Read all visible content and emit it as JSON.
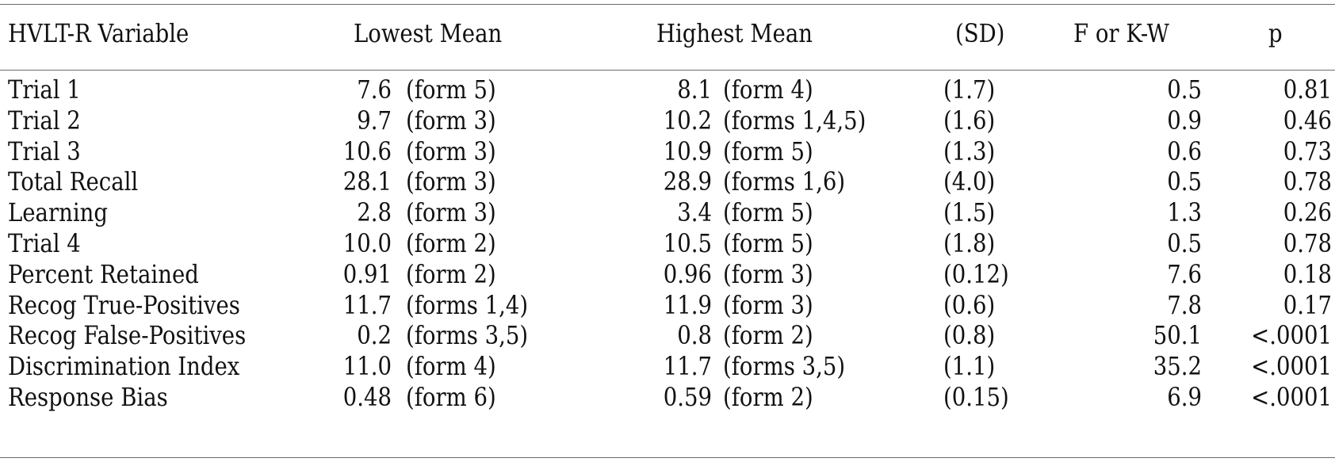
{
  "table": {
    "headers": {
      "variable": "HVLT-R Variable",
      "lowest": "Lowest Mean",
      "highest": "Highest Mean",
      "sd": "(SD)",
      "f": "F or K-W",
      "p": "p"
    },
    "rows": [
      {
        "variable": "Trial 1",
        "low_val": "7.6",
        "low_form": "(form 5)",
        "high_val": "8.1",
        "high_form": "(form 4)",
        "sd": "(1.7)",
        "f": "0.5",
        "p": "0.81"
      },
      {
        "variable": "Trial 2",
        "low_val": "9.7",
        "low_form": "(form 3)",
        "high_val": "10.2",
        "high_form": "(forms 1,4,5)",
        "sd": "(1.6)",
        "f": "0.9",
        "p": "0.46"
      },
      {
        "variable": "Trial 3",
        "low_val": "10.6",
        "low_form": "(form 3)",
        "high_val": "10.9",
        "high_form": "(form 5)",
        "sd": "(1.3)",
        "f": "0.6",
        "p": "0.73"
      },
      {
        "variable": "Total Recall",
        "low_val": "28.1",
        "low_form": "(form 3)",
        "high_val": "28.9",
        "high_form": "(forms 1,6)",
        "sd": "(4.0)",
        "f": "0.5",
        "p": "0.78"
      },
      {
        "variable": "Learning",
        "low_val": "2.8",
        "low_form": "(form 3)",
        "high_val": "3.4",
        "high_form": "(form 5)",
        "sd": "(1.5)",
        "f": "1.3",
        "p": "0.26"
      },
      {
        "variable": "Trial 4",
        "low_val": "10.0",
        "low_form": "(form 2)",
        "high_val": "10.5",
        "high_form": "(form 5)",
        "sd": "(1.8)",
        "f": "0.5",
        "p": "0.78"
      },
      {
        "variable": "Percent Retained",
        "low_val": "0.91",
        "low_form": "(form 2)",
        "high_val": "0.96",
        "high_form": "(form 3)",
        "sd": "(0.12)",
        "f": "7.6",
        "p": "0.18"
      },
      {
        "variable": "Recog True-Positives",
        "low_val": "11.7",
        "low_form": "(forms 1,4)",
        "high_val": "11.9",
        "high_form": "(form 3)",
        "sd": "(0.6)",
        "f": "7.8",
        "p": "0.17"
      },
      {
        "variable": "Recog False-Positives",
        "low_val": "0.2",
        "low_form": "(forms 3,5)",
        "high_val": "0.8",
        "high_form": "(form 2)",
        "sd": "(0.8)",
        "f": "50.1",
        "p": "<.0001"
      },
      {
        "variable": "Discrimination Index",
        "low_val": "11.0",
        "low_form": "(form 4)",
        "high_val": "11.7",
        "high_form": "(forms 3,5)",
        "sd": "(1.1)",
        "f": "35.2",
        "p": "<.0001"
      },
      {
        "variable": "Response Bias",
        "low_val": "0.48",
        "low_form": "(form 6)",
        "high_val": "0.59",
        "high_form": "(form 2)",
        "sd": "(0.15)",
        "f": "6.9",
        "p": "<.0001"
      }
    ]
  }
}
